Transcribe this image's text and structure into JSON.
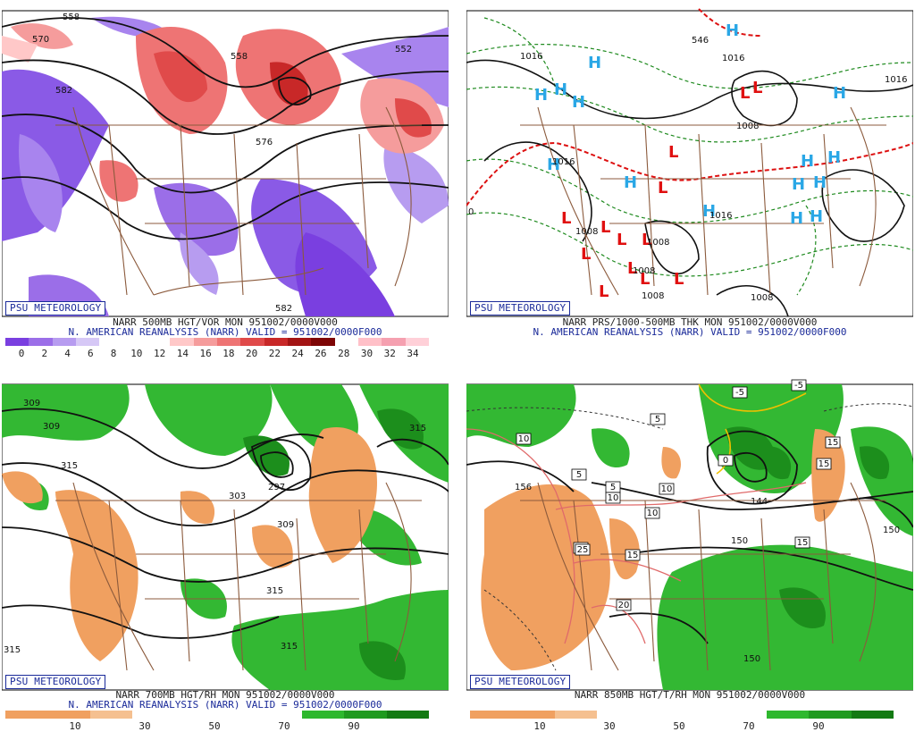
{
  "brand": "PSU METEOROLOGY",
  "panels": [
    {
      "id": "vor500",
      "line1": "NARR 500MB HGT/VOR MON 951002/0000V000",
      "line2": "N. AMERICAN REANALYSIS (NARR) VALID = 951002/0000F000",
      "colorbar_colors": [
        "#7a3fe0",
        "#9b6ee8",
        "#b79cf0",
        "#d6c8f6",
        "#ffffff",
        "#ffffff",
        "#ffffff",
        "#ffc8c8",
        "#f59c9c",
        "#ee7474",
        "#e04a4a",
        "#c82828",
        "#a31414",
        "#7d0505",
        "#ffffff",
        "#ffc0c8",
        "#f5a0b0",
        "#ffd0d8"
      ],
      "ticks": [
        "0",
        "2",
        "4",
        "6",
        "8",
        "10",
        "12",
        "14",
        "16",
        "18",
        "20",
        "22",
        "24",
        "26",
        "28",
        "30",
        "32",
        "34"
      ],
      "labels": [
        "558",
        "570",
        "582",
        "576",
        "558",
        "552",
        "582"
      ]
    },
    {
      "id": "prs1000",
      "line1": "NARR PRS/1000-500MB THK MON 951002/0000V000",
      "line2": "N. AMERICAN REANALYSIS (NARR) VALID = 951002/0000F000",
      "labels": [
        "1016",
        "1016",
        "1016",
        "1016",
        "1008",
        "1008",
        "1008",
        "1008",
        "1008",
        "1008",
        "1016",
        "546",
        "0"
      ],
      "high_symbol": "H",
      "low_symbol": "L"
    },
    {
      "id": "rh700",
      "line1": "NARR 700MB HGT/RH MON 951002/0000V000",
      "line2": "N. AMERICAN REANALYSIS (NARR) VALID = 951002/0000F000",
      "colorbar_colors": [
        "#f0a060",
        "#f0a060",
        "#f5c090",
        "#ffffff",
        "#ffffff",
        "#ffffff",
        "#ffffff",
        "#2eb82e",
        "#1f9a1f",
        "#137a13"
      ],
      "ticks": [
        "10",
        "30",
        "50",
        "70",
        "90"
      ],
      "labels": [
        "309",
        "309",
        "315",
        "303",
        "297",
        "309",
        "315",
        "315",
        "315",
        "315"
      ]
    },
    {
      "id": "t850",
      "line1": "NARR 850MB HGT/T/RH MON 951002/0000V000",
      "line2": "",
      "colorbar_colors": [
        "#f0a060",
        "#f0a060",
        "#f5c090",
        "#ffffff",
        "#ffffff",
        "#ffffff",
        "#ffffff",
        "#2eb82e",
        "#1f9a1f",
        "#137a13"
      ],
      "ticks": [
        "10",
        "30",
        "50",
        "70",
        "90"
      ],
      "labels": [
        "156",
        "150",
        "150",
        "150",
        "144"
      ],
      "boxed_labels": [
        "-5",
        "5",
        "5",
        "5",
        "10",
        "10",
        "10",
        "10",
        "10",
        "15",
        "15",
        "15",
        "15",
        "20",
        "25",
        "0",
        "-5"
      ]
    }
  ]
}
